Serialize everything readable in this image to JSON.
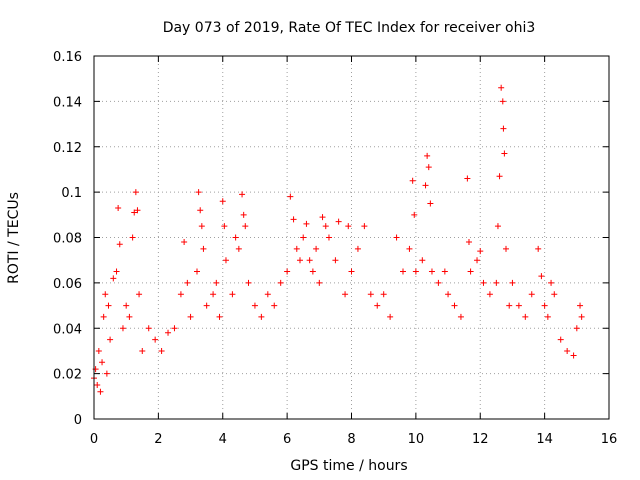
{
  "chart_data": {
    "type": "scatter",
    "title": "Day 073 of 2019, Rate Of TEC Index for receiver ohi3",
    "xlabel": "GPS time / hours",
    "ylabel": "ROTI / TECUs",
    "xlim": [
      0,
      16
    ],
    "ylim": [
      0,
      0.16
    ],
    "x_ticks": [
      0,
      2,
      4,
      6,
      8,
      10,
      12,
      14,
      16
    ],
    "y_ticks": [
      0,
      0.02,
      0.04,
      0.06,
      0.08,
      0.1,
      0.12,
      0.14,
      0.16
    ],
    "x_tick_labels": [
      "0",
      "2",
      "4",
      "6",
      "8",
      "10",
      "12",
      "14",
      "16"
    ],
    "y_tick_labels": [
      "0",
      "0.02",
      "0.04",
      "0.06",
      "0.08",
      "0.1",
      "0.12",
      "0.14",
      "0.16"
    ],
    "grid": true,
    "marker": "+",
    "color": "#ff0000",
    "series": [
      {
        "name": "ohi3",
        "points": [
          [
            0.0,
            0.018
          ],
          [
            0.05,
            0.022
          ],
          [
            0.1,
            0.015
          ],
          [
            0.15,
            0.03
          ],
          [
            0.2,
            0.012
          ],
          [
            0.25,
            0.025
          ],
          [
            0.3,
            0.045
          ],
          [
            0.35,
            0.055
          ],
          [
            0.4,
            0.02
          ],
          [
            0.45,
            0.05
          ],
          [
            0.5,
            0.035
          ],
          [
            0.6,
            0.062
          ],
          [
            0.7,
            0.065
          ],
          [
            0.75,
            0.093
          ],
          [
            0.8,
            0.077
          ],
          [
            0.9,
            0.04
          ],
          [
            1.0,
            0.05
          ],
          [
            1.1,
            0.045
          ],
          [
            1.2,
            0.08
          ],
          [
            1.25,
            0.091
          ],
          [
            1.3,
            0.1
          ],
          [
            1.35,
            0.092
          ],
          [
            1.4,
            0.055
          ],
          [
            1.5,
            0.03
          ],
          [
            1.7,
            0.04
          ],
          [
            1.9,
            0.035
          ],
          [
            2.1,
            0.03
          ],
          [
            2.3,
            0.038
          ],
          [
            2.5,
            0.04
          ],
          [
            2.7,
            0.055
          ],
          [
            2.8,
            0.078
          ],
          [
            2.9,
            0.06
          ],
          [
            3.0,
            0.045
          ],
          [
            3.2,
            0.065
          ],
          [
            3.25,
            0.1
          ],
          [
            3.3,
            0.092
          ],
          [
            3.35,
            0.085
          ],
          [
            3.4,
            0.075
          ],
          [
            3.5,
            0.05
          ],
          [
            3.7,
            0.055
          ],
          [
            3.8,
            0.06
          ],
          [
            3.9,
            0.045
          ],
          [
            4.0,
            0.096
          ],
          [
            4.05,
            0.085
          ],
          [
            4.1,
            0.07
          ],
          [
            4.3,
            0.055
          ],
          [
            4.4,
            0.08
          ],
          [
            4.5,
            0.075
          ],
          [
            4.6,
            0.099
          ],
          [
            4.65,
            0.09
          ],
          [
            4.7,
            0.085
          ],
          [
            4.8,
            0.06
          ],
          [
            5.0,
            0.05
          ],
          [
            5.2,
            0.045
          ],
          [
            5.4,
            0.055
          ],
          [
            5.6,
            0.05
          ],
          [
            5.8,
            0.06
          ],
          [
            6.0,
            0.065
          ],
          [
            6.1,
            0.098
          ],
          [
            6.2,
            0.088
          ],
          [
            6.3,
            0.075
          ],
          [
            6.4,
            0.07
          ],
          [
            6.5,
            0.08
          ],
          [
            6.6,
            0.086
          ],
          [
            6.7,
            0.07
          ],
          [
            6.8,
            0.065
          ],
          [
            6.9,
            0.075
          ],
          [
            7.0,
            0.06
          ],
          [
            7.1,
            0.089
          ],
          [
            7.2,
            0.085
          ],
          [
            7.3,
            0.08
          ],
          [
            7.5,
            0.07
          ],
          [
            7.6,
            0.087
          ],
          [
            7.8,
            0.055
          ],
          [
            7.9,
            0.085
          ],
          [
            8.0,
            0.065
          ],
          [
            8.2,
            0.075
          ],
          [
            8.4,
            0.085
          ],
          [
            8.6,
            0.055
          ],
          [
            8.8,
            0.05
          ],
          [
            9.0,
            0.055
          ],
          [
            9.2,
            0.045
          ],
          [
            9.4,
            0.08
          ],
          [
            9.6,
            0.065
          ],
          [
            9.8,
            0.075
          ],
          [
            9.9,
            0.105
          ],
          [
            9.95,
            0.09
          ],
          [
            10.0,
            0.065
          ],
          [
            10.2,
            0.07
          ],
          [
            10.3,
            0.103
          ],
          [
            10.35,
            0.116
          ],
          [
            10.4,
            0.111
          ],
          [
            10.45,
            0.095
          ],
          [
            10.5,
            0.065
          ],
          [
            10.7,
            0.06
          ],
          [
            10.9,
            0.065
          ],
          [
            11.0,
            0.055
          ],
          [
            11.2,
            0.05
          ],
          [
            11.4,
            0.045
          ],
          [
            11.6,
            0.106
          ],
          [
            11.65,
            0.078
          ],
          [
            11.7,
            0.065
          ],
          [
            11.9,
            0.07
          ],
          [
            12.0,
            0.074
          ],
          [
            12.1,
            0.06
          ],
          [
            12.3,
            0.055
          ],
          [
            12.5,
            0.06
          ],
          [
            12.55,
            0.085
          ],
          [
            12.6,
            0.107
          ],
          [
            12.65,
            0.146
          ],
          [
            12.7,
            0.14
          ],
          [
            12.72,
            0.128
          ],
          [
            12.75,
            0.117
          ],
          [
            12.8,
            0.075
          ],
          [
            12.9,
            0.05
          ],
          [
            13.0,
            0.06
          ],
          [
            13.2,
            0.05
          ],
          [
            13.4,
            0.045
          ],
          [
            13.6,
            0.055
          ],
          [
            13.8,
            0.075
          ],
          [
            13.9,
            0.063
          ],
          [
            14.0,
            0.05
          ],
          [
            14.1,
            0.045
          ],
          [
            14.2,
            0.06
          ],
          [
            14.3,
            0.055
          ],
          [
            14.5,
            0.035
          ],
          [
            14.7,
            0.03
          ],
          [
            14.9,
            0.028
          ],
          [
            15.0,
            0.04
          ],
          [
            15.1,
            0.05
          ],
          [
            15.15,
            0.045
          ]
        ]
      }
    ]
  }
}
